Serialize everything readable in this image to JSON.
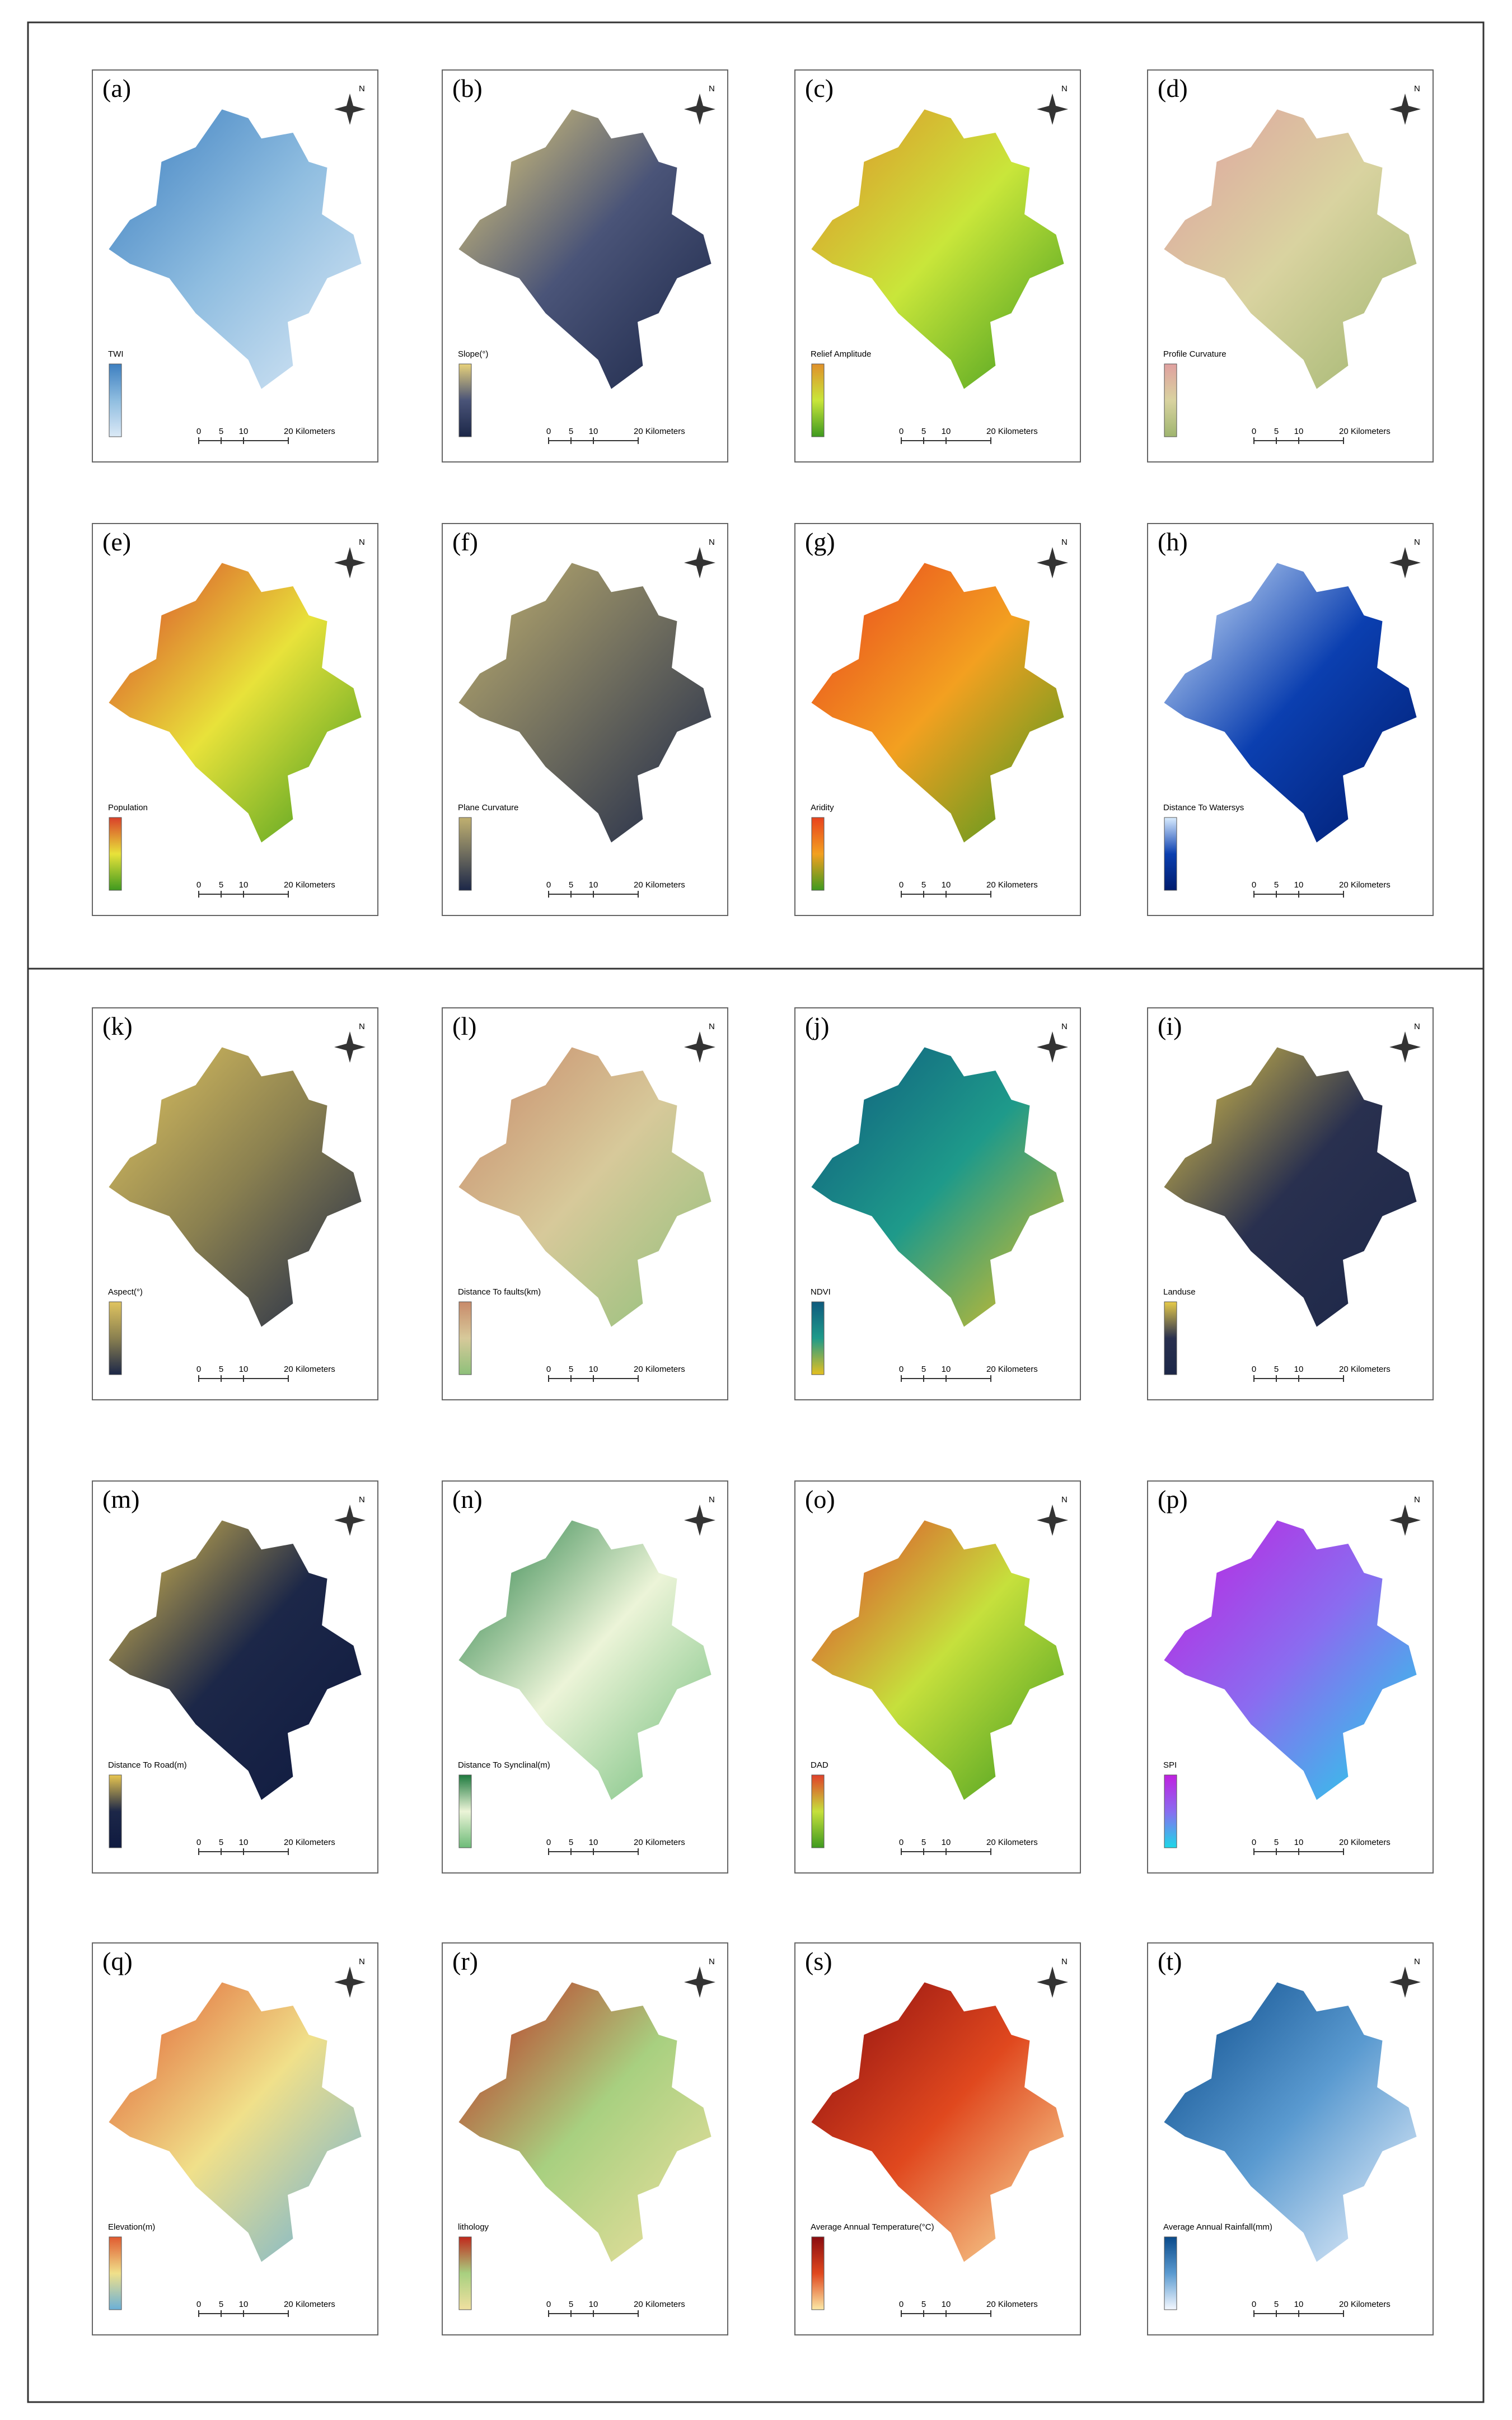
{
  "north": "N",
  "scale": {
    "ticks": [
      "0",
      "5",
      "10"
    ],
    "unit": "20 Kilometers"
  },
  "panels": [
    {
      "label": "(a)",
      "legend": "TWI",
      "colors": [
        "#3d7fc0",
        "#8fbde0",
        "#dbe9f6"
      ]
    },
    {
      "label": "(b)",
      "legend": "Slope(°)",
      "colors": [
        "#e8d27a",
        "#4a5478",
        "#1c2748"
      ]
    },
    {
      "label": "(c)",
      "legend": "Relief Amplitude",
      "colors": [
        "#e0902a",
        "#c9e63a",
        "#3f9a1f"
      ]
    },
    {
      "label": "(d)",
      "legend": "Profile Curvature",
      "colors": [
        "#e0a0a0",
        "#d9d3a0",
        "#9fb56f"
      ]
    },
    {
      "label": "(e)",
      "legend": "Population",
      "colors": [
        "#d9402a",
        "#e8e23a",
        "#3f9a1f"
      ]
    },
    {
      "label": "(f)",
      "legend": "Plane Curvature",
      "colors": [
        "#c0b070",
        "#6f6d5e",
        "#1c2748"
      ]
    },
    {
      "label": "(g)",
      "legend": "Aridity",
      "colors": [
        "#e8421e",
        "#f3a020",
        "#3f9a1f"
      ]
    },
    {
      "label": "(h)",
      "legend": "Distance To Watersys",
      "colors": [
        "#d9ecff",
        "#0b3fb0",
        "#001c6e"
      ]
    },
    {
      "label": "(k)",
      "legend": "Aspect(°)",
      "colors": [
        "#e0c460",
        "#8a8050",
        "#1c2748"
      ]
    },
    {
      "label": "(l)",
      "legend": "Distance To faults(km)",
      "colors": [
        "#c88a6a",
        "#d7c99a",
        "#8ec07a"
      ]
    },
    {
      "label": "(j)",
      "legend": "NDVI",
      "colors": [
        "#0f5a7e",
        "#1e9a8a",
        "#e5c020"
      ]
    },
    {
      "label": "(i)",
      "legend": "Landuse",
      "colors": [
        "#e7cb4a",
        "#29304f",
        "#1c2748"
      ]
    },
    {
      "label": "(m)",
      "legend": "Distance To Road(m)",
      "colors": [
        "#e8c650",
        "#1c2748",
        "#0f1a40"
      ]
    },
    {
      "label": "(n)",
      "legend": "Distance To Synclinal(m)",
      "colors": [
        "#1e7a3e",
        "#ecf4d8",
        "#6dbb78"
      ]
    },
    {
      "label": "(o)",
      "legend": "DAD",
      "colors": [
        "#e0402a",
        "#c6e03c",
        "#3f9a1f"
      ]
    },
    {
      "label": "(p)",
      "legend": "SPI",
      "colors": [
        "#c020e0",
        "#8a6cf0",
        "#1ed8e8"
      ]
    },
    {
      "label": "(q)",
      "legend": "Elevation(m)",
      "colors": [
        "#e05a30",
        "#f0e08a",
        "#6ab0d8"
      ]
    },
    {
      "label": "(r)",
      "legend": "lithology",
      "colors": [
        "#c0281c",
        "#a8d080",
        "#f0e0a0"
      ]
    },
    {
      "label": "(s)",
      "legend": "Average Annual Temperature(°C)",
      "colors": [
        "#8a0c10",
        "#e0481e",
        "#fbe9a6"
      ]
    },
    {
      "label": "(t)",
      "legend": "Average Annual Rainfall(mm)",
      "colors": [
        "#0a4a8a",
        "#5a9ad0",
        "#f4f8ff"
      ]
    }
  ]
}
